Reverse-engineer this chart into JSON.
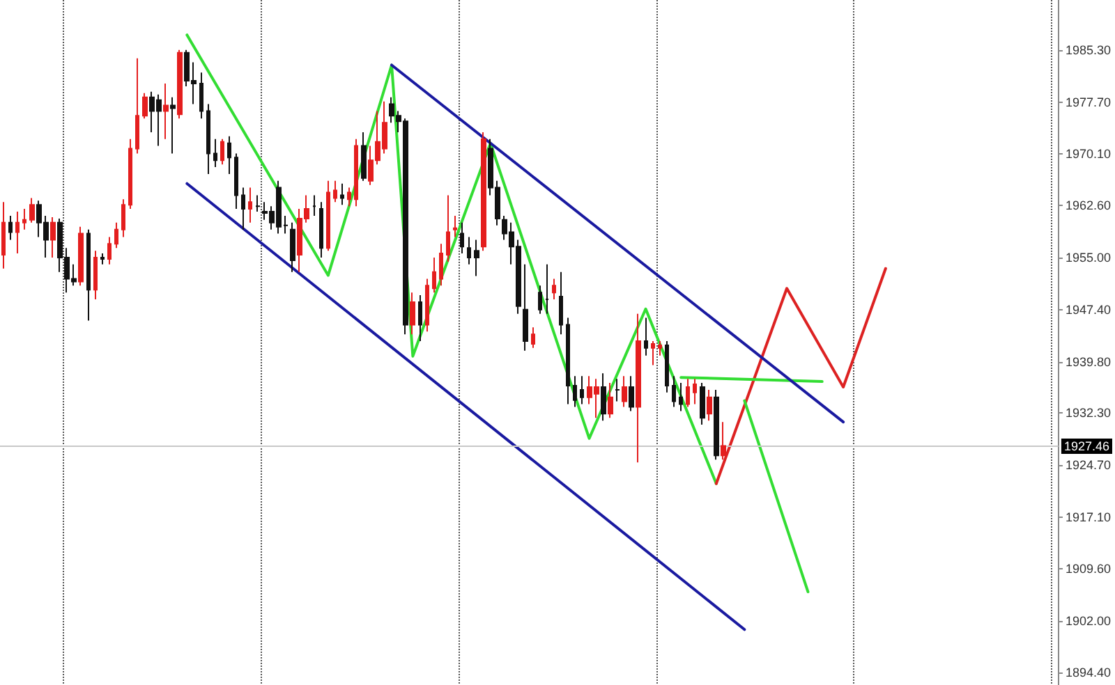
{
  "chart_data": {
    "type": "candlestick",
    "categories": [
      null,
      null,
      null,
      null,
      null,
      null,
      null,
      null,
      null,
      null,
      null,
      null,
      null,
      null,
      null,
      null,
      null,
      null,
      null,
      null,
      null,
      null,
      null,
      null,
      null,
      null,
      null,
      null,
      null,
      null,
      null,
      null,
      null,
      null,
      null,
      null,
      null,
      null,
      null,
      null,
      null,
      null,
      null,
      null,
      null,
      null,
      null,
      null,
      null,
      null,
      null,
      null,
      null,
      null,
      null,
      null,
      null,
      null,
      null,
      null,
      null,
      null,
      null,
      null,
      null,
      null,
      null,
      null,
      null,
      null,
      null,
      null,
      null,
      null,
      null,
      null,
      null,
      null,
      null,
      null,
      null,
      null,
      null,
      null,
      null,
      null,
      null,
      null,
      null,
      null,
      null,
      null,
      null,
      null,
      null,
      null,
      null,
      null,
      null,
      null,
      null,
      null,
      null,
      null,
      null,
      null,
      null,
      null,
      null,
      null,
      null,
      null,
      null,
      null,
      null,
      null,
      null,
      null,
      null,
      null,
      null,
      null,
      null,
      null,
      null,
      null,
      null,
      null,
      null,
      null,
      null,
      null,
      null,
      null,
      null,
      null,
      null,
      null,
      null,
      null,
      null,
      null,
      null,
      null,
      null,
      null,
      null,
      null,
      null,
      null
    ],
    "ohlc": [
      [
        1955.4,
        1963.1,
        1953.4,
        1960.1
      ],
      [
        1960.1,
        1961.1,
        1957.6,
        1958.7
      ],
      [
        1958.7,
        1961.7,
        1955.6,
        1960.1
      ],
      [
        1960.1,
        1962.1,
        1959.1,
        1960.5
      ],
      [
        1960.5,
        1963.7,
        1960.1,
        1962.7
      ],
      [
        1962.7,
        1963.3,
        1958.0,
        1960.1
      ],
      [
        1960.1,
        1961.1,
        1955.0,
        1957.6
      ],
      [
        1957.6,
        1960.9,
        1955.0,
        1960.1
      ],
      [
        1960.1,
        1960.7,
        1952.9,
        1955.0
      ],
      [
        1955.0,
        1956.4,
        1949.9,
        1951.9
      ],
      [
        1951.9,
        1954.0,
        1950.9,
        1951.5
      ],
      [
        1951.5,
        1959.5,
        1950.9,
        1958.5
      ],
      [
        1958.5,
        1959.1,
        1945.8,
        1950.3
      ],
      [
        1950.3,
        1956.0,
        1948.9,
        1955.0
      ],
      [
        1955.0,
        1955.6,
        1954.0,
        1954.8
      ],
      [
        1954.8,
        1958.0,
        1954.0,
        1957.0
      ],
      [
        1957.0,
        1960.1,
        1956.4,
        1959.1
      ],
      [
        1959.1,
        1963.5,
        1958.0,
        1962.7
      ],
      [
        1962.7,
        1972.3,
        1962.1,
        1970.9
      ],
      [
        1970.9,
        1984.1,
        1970.2,
        1975.7
      ],
      [
        1975.7,
        1979.0,
        1975.3,
        1978.4
      ],
      [
        1978.4,
        1979.2,
        1973.3,
        1976.4
      ],
      [
        1978.0,
        1978.8,
        1971.3,
        1976.4
      ],
      [
        1976.4,
        1980.4,
        1972.3,
        1977.2
      ],
      [
        1977.2,
        1978.4,
        1970.2,
        1976.8
      ],
      [
        1975.9,
        1985.3,
        1975.3,
        1984.9
      ],
      [
        1984.9,
        1985.3,
        1980.0,
        1980.8
      ],
      [
        1980.8,
        1983.5,
        1977.4,
        1980.4
      ],
      [
        1980.4,
        1982.0,
        1975.3,
        1976.4
      ],
      [
        1976.4,
        1977.4,
        1967.2,
        1970.2
      ],
      [
        1970.2,
        1972.3,
        1968.2,
        1969.2
      ],
      [
        1969.2,
        1972.3,
        1968.6,
        1971.9
      ],
      [
        1971.7,
        1972.7,
        1967.2,
        1969.6
      ],
      [
        1969.6,
        1970.2,
        1962.1,
        1964.1
      ],
      [
        1964.1,
        1965.2,
        1959.1,
        1962.1
      ],
      [
        1962.1,
        1965.2,
        1960.1,
        1963.1
      ],
      [
        1962.5,
        1964.1,
        1961.7,
        1962.5
      ],
      [
        1961.7,
        1963.1,
        1960.5,
        1961.5
      ],
      [
        1961.7,
        1962.5,
        1959.1,
        1960.1
      ],
      [
        1965.2,
        1966.2,
        1958.5,
        1959.5
      ],
      [
        1959.7,
        1961.1,
        1958.5,
        1959.7
      ],
      [
        1959.1,
        1960.1,
        1952.9,
        1954.6
      ],
      [
        1955.4,
        1962.1,
        1952.9,
        1960.7
      ],
      [
        1960.7,
        1964.1,
        1960.1,
        1962.1
      ],
      [
        1962.5,
        1964.1,
        1961.1,
        1962.5
      ],
      [
        1962.1,
        1963.1,
        1955.0,
        1956.4
      ],
      [
        1956.4,
        1966.2,
        1956.0,
        1964.5
      ],
      [
        1963.7,
        1966.2,
        1963.1,
        1964.8
      ],
      [
        1964.1,
        1965.8,
        1962.7,
        1963.7
      ],
      [
        1963.5,
        1965.2,
        1962.5,
        1964.5
      ],
      [
        1963.5,
        1972.3,
        1962.5,
        1971.3
      ],
      [
        1971.3,
        1973.3,
        1966.2,
        1966.6
      ],
      [
        1966.2,
        1971.3,
        1965.6,
        1969.2
      ],
      [
        1969.2,
        1976.4,
        1968.6,
        1971.9
      ],
      [
        1970.9,
        1977.8,
        1970.2,
        1974.7
      ],
      [
        1977.4,
        1978.4,
        1974.7,
        1975.7
      ],
      [
        1975.7,
        1976.4,
        1973.3,
        1974.9
      ],
      [
        1974.9,
        1975.3,
        1943.8,
        1945.2
      ],
      [
        1945.2,
        1949.9,
        1943.8,
        1948.5
      ],
      [
        1948.5,
        1949.5,
        1942.8,
        1945.2
      ],
      [
        1945.2,
        1951.9,
        1944.2,
        1950.9
      ],
      [
        1950.5,
        1955.0,
        1949.9,
        1952.9
      ],
      [
        1951.9,
        1957.0,
        1950.9,
        1955.6
      ],
      [
        1955.4,
        1964.1,
        1954.4,
        1958.7
      ],
      [
        1959.1,
        1961.1,
        1958.0,
        1959.3
      ],
      [
        1958.5,
        1960.1,
        1955.6,
        1956.6
      ],
      [
        1956.4,
        1958.0,
        1954.0,
        1955.0
      ],
      [
        1956.0,
        1957.6,
        1952.3,
        1955.0
      ],
      [
        1956.6,
        1973.3,
        1956.0,
        1972.3
      ],
      [
        1970.9,
        1972.3,
        1964.1,
        1965.2
      ],
      [
        1965.2,
        1966.2,
        1959.7,
        1960.7
      ],
      [
        1960.5,
        1961.1,
        1957.6,
        1958.5
      ],
      [
        1958.7,
        1960.1,
        1954.0,
        1956.6
      ],
      [
        1956.6,
        1957.6,
        1946.8,
        1947.9
      ],
      [
        1947.4,
        1954.0,
        1941.4,
        1942.8
      ],
      [
        1942.4,
        1944.8,
        1941.8,
        1943.8
      ],
      [
        1949.9,
        1950.9,
        1946.8,
        1947.4
      ],
      [
        1948.9,
        1954.0,
        1946.8,
        1948.9
      ],
      [
        1949.9,
        1951.9,
        1948.9,
        1950.9
      ],
      [
        1949.3,
        1952.9,
        1943.8,
        1945.2
      ],
      [
        1945.2,
        1946.2,
        1933.6,
        1936.3
      ],
      [
        1936.3,
        1937.7,
        1933.2,
        1934.2
      ],
      [
        1935.7,
        1937.7,
        1933.6,
        1934.6
      ],
      [
        1934.6,
        1937.7,
        1933.6,
        1936.1
      ],
      [
        1935.1,
        1937.3,
        1931.6,
        1936.1
      ],
      [
        1936.1,
        1938.1,
        1931.2,
        1932.2
      ],
      [
        1932.2,
        1936.7,
        1931.6,
        1934.6
      ],
      [
        1935.7,
        1937.3,
        1934.0,
        1935.7
      ],
      [
        1934.0,
        1937.7,
        1933.2,
        1936.1
      ],
      [
        1936.1,
        1937.7,
        1932.6,
        1933.2
      ],
      [
        1933.2,
        1946.8,
        1925.1,
        1942.8
      ],
      [
        1942.8,
        1946.2,
        1940.7,
        1941.8
      ],
      [
        1941.8,
        1942.8,
        1939.3,
        1942.4
      ],
      [
        1941.8,
        1942.8,
        1940.7,
        1942.2
      ],
      [
        1942.2,
        1942.8,
        1935.3,
        1936.3
      ],
      [
        1936.3,
        1937.7,
        1933.2,
        1934.0
      ],
      [
        1934.6,
        1936.7,
        1932.6,
        1933.6
      ],
      [
        1933.6,
        1937.3,
        1933.2,
        1936.1
      ],
      [
        1935.3,
        1937.3,
        1933.6,
        1936.5
      ],
      [
        1936.1,
        1936.7,
        1930.6,
        1931.6
      ],
      [
        1932.2,
        1935.7,
        1931.2,
        1934.6
      ],
      [
        1934.6,
        1935.7,
        1925.5,
        1926.1
      ],
      [
        1926.1,
        1931.0,
        1925.5,
        1927.5
      ],
      null,
      null,
      null,
      null,
      null,
      null,
      null,
      null,
      null,
      null,
      null,
      null,
      null,
      null,
      null,
      null,
      null,
      null,
      null,
      null,
      null,
      null,
      null,
      null,
      null,
      null,
      null,
      null,
      null,
      null,
      null,
      null,
      null,
      null,
      null,
      null,
      null,
      null,
      null,
      null,
      null,
      null,
      null,
      null,
      null,
      null,
      null
    ],
    "colors": [
      "#e41e1e",
      "#111111",
      "#e41e1e",
      "#e41e1e",
      "#e41e1e",
      "#111111",
      "#111111",
      "#e41e1e",
      "#111111",
      "#111111",
      "#111111",
      "#e41e1e",
      "#111111",
      "#e41e1e",
      "#111111",
      "#e41e1e",
      "#e41e1e",
      "#e41e1e",
      "#e41e1e",
      "#e41e1e",
      "#e41e1e",
      "#111111",
      "#111111",
      "#e41e1e",
      "#111111",
      "#e41e1e",
      "#111111",
      "#111111",
      "#111111",
      "#111111",
      "#111111",
      "#e41e1e",
      "#111111",
      "#111111",
      "#111111",
      "#e41e1e",
      "#111111",
      "#111111",
      "#111111",
      "#111111",
      "#111111",
      "#111111",
      "#e41e1e",
      "#e41e1e",
      "#111111",
      "#111111",
      "#e41e1e",
      "#e41e1e",
      "#111111",
      "#e41e1e",
      "#e41e1e",
      "#111111",
      "#e41e1e",
      "#e41e1e",
      "#e41e1e",
      "#111111",
      "#111111",
      "#111111",
      "#e41e1e",
      "#111111",
      "#e41e1e",
      "#e41e1e",
      "#e41e1e",
      "#e41e1e",
      "#e41e1e",
      "#111111",
      "#111111",
      "#111111",
      "#e41e1e",
      "#111111",
      "#111111",
      "#111111",
      "#111111",
      "#111111",
      "#111111",
      "#e41e1e",
      "#111111",
      "#111111",
      "#e41e1e",
      "#111111",
      "#111111",
      "#111111",
      "#111111",
      "#e41e1e",
      "#e41e1e",
      "#111111",
      "#e41e1e",
      "#111111",
      "#e41e1e",
      "#111111",
      "#e41e1e",
      "#111111",
      "#e41e1e",
      "#e41e1e",
      "#111111",
      "#111111",
      "#111111",
      "#e41e1e",
      "#e41e1e",
      "#111111",
      "#e41e1e",
      "#111111",
      "#e41e1e",
      null,
      null,
      null,
      null,
      null,
      null,
      null,
      null,
      null,
      null,
      null,
      null,
      null,
      null,
      null,
      null,
      null,
      null,
      null,
      null,
      null,
      null,
      null,
      null,
      null,
      null,
      null,
      null,
      null,
      null,
      null,
      null,
      null,
      null,
      null,
      null,
      null,
      null,
      null,
      null,
      null,
      null,
      null,
      null,
      null,
      null,
      null
    ],
    "series": [
      {
        "type": "line",
        "color": "#33dd33",
        "values": [
          null,
          null,
          null,
          null,
          null,
          null,
          null,
          null,
          null,
          null,
          null,
          null,
          null,
          null,
          null,
          null,
          null,
          null,
          null,
          null,
          null,
          null,
          null,
          null,
          null,
          null,
          1987.5,
          null,
          null,
          null,
          null,
          null,
          null,
          null,
          null,
          null,
          null,
          null,
          null,
          null,
          null,
          null,
          null,
          null,
          null,
          null,
          1952.4,
          null,
          null,
          null,
          null,
          null,
          null,
          null,
          null,
          1983.1,
          null,
          null,
          1940.6,
          null,
          null,
          null,
          null,
          null,
          null,
          null,
          null,
          null,
          null,
          1971.7,
          null,
          null,
          null,
          null,
          null,
          null,
          null,
          null,
          null,
          null,
          null,
          null,
          null,
          1928.6,
          null,
          null,
          null,
          null,
          null,
          null,
          null,
          1947.5,
          null,
          null,
          null,
          null,
          null,
          null,
          null,
          null,
          null,
          1922.0,
          null,
          null,
          null,
          null,
          null,
          null,
          null,
          null,
          null,
          null,
          null,
          null,
          null,
          null,
          null,
          null,
          null,
          null,
          null,
          null,
          null,
          null,
          null,
          null,
          null,
          null,
          null,
          null,
          null,
          null,
          null,
          null,
          null,
          null,
          null,
          null,
          null,
          null,
          null,
          null,
          null,
          null,
          null,
          null,
          null,
          null,
          null,
          null
        ]
      },
      {
        "type": "line",
        "color": "#dd2222",
        "values": [
          null,
          null,
          null,
          null,
          null,
          null,
          null,
          null,
          null,
          null,
          null,
          null,
          null,
          null,
          null,
          null,
          null,
          null,
          null,
          null,
          null,
          null,
          null,
          null,
          null,
          null,
          null,
          null,
          null,
          null,
          null,
          null,
          null,
          null,
          null,
          null,
          null,
          null,
          null,
          null,
          null,
          null,
          null,
          null,
          null,
          null,
          null,
          null,
          null,
          null,
          null,
          null,
          null,
          null,
          null,
          null,
          null,
          null,
          null,
          null,
          null,
          null,
          null,
          null,
          null,
          null,
          null,
          null,
          null,
          null,
          null,
          null,
          null,
          null,
          null,
          null,
          null,
          null,
          null,
          null,
          null,
          null,
          null,
          null,
          null,
          null,
          null,
          null,
          null,
          null,
          null,
          null,
          null,
          null,
          null,
          null,
          null,
          null,
          null,
          null,
          null,
          1922.0,
          null,
          null,
          null,
          null,
          null,
          null,
          null,
          null,
          null,
          1950.5,
          null,
          null,
          null,
          null,
          null,
          null,
          null,
          1936.1,
          null,
          null,
          null,
          null,
          null,
          1953.4,
          null,
          null,
          null,
          null,
          null,
          null,
          null,
          null,
          null,
          null,
          null,
          null,
          null,
          null,
          null,
          null,
          null,
          null,
          null,
          null,
          null,
          null,
          null,
          null
        ]
      },
      {
        "type": "line",
        "color": "#33dd33",
        "values": [
          null,
          null,
          null,
          null,
          null,
          null,
          null,
          null,
          null,
          null,
          null,
          null,
          null,
          null,
          null,
          null,
          null,
          null,
          null,
          null,
          null,
          null,
          null,
          null,
          null,
          null,
          null,
          null,
          null,
          null,
          null,
          null,
          null,
          null,
          null,
          null,
          null,
          null,
          null,
          null,
          null,
          null,
          null,
          null,
          null,
          null,
          null,
          null,
          null,
          null,
          null,
          null,
          null,
          null,
          null,
          null,
          null,
          null,
          null,
          null,
          null,
          null,
          null,
          null,
          null,
          null,
          null,
          null,
          null,
          null,
          null,
          null,
          null,
          null,
          null,
          null,
          null,
          null,
          null,
          null,
          null,
          null,
          null,
          null,
          null,
          null,
          null,
          null,
          null,
          null,
          null,
          null,
          null,
          null,
          null,
          null,
          null,
          null,
          null,
          null,
          null,
          null,
          null,
          null,
          null,
          1934.1,
          null,
          null,
          null,
          null,
          null,
          null,
          null,
          null,
          1906.2,
          null,
          null,
          null,
          null,
          null,
          null,
          null,
          null,
          null,
          null,
          null,
          null,
          null,
          null,
          null,
          null,
          null,
          null,
          null,
          null,
          null,
          null,
          null,
          null,
          null,
          null,
          null,
          null,
          null,
          null,
          null,
          null,
          null,
          null,
          null
        ]
      },
      {
        "type": "line",
        "color": "#33dd33",
        "values": [
          null,
          null,
          null,
          null,
          null,
          null,
          null,
          null,
          null,
          null,
          null,
          null,
          null,
          null,
          null,
          null,
          null,
          null,
          null,
          null,
          null,
          null,
          null,
          null,
          null,
          null,
          null,
          null,
          null,
          null,
          null,
          null,
          null,
          null,
          null,
          null,
          null,
          null,
          null,
          null,
          null,
          null,
          null,
          null,
          null,
          null,
          null,
          null,
          null,
          null,
          null,
          null,
          null,
          null,
          null,
          null,
          null,
          null,
          null,
          null,
          null,
          null,
          null,
          null,
          null,
          null,
          null,
          null,
          null,
          null,
          null,
          null,
          null,
          null,
          null,
          null,
          null,
          null,
          null,
          null,
          null,
          null,
          null,
          null,
          null,
          null,
          null,
          null,
          null,
          null,
          null,
          null,
          null,
          null,
          null,
          null,
          1937.5,
          null,
          null,
          null,
          null,
          null,
          null,
          null,
          null,
          null,
          null,
          null,
          null,
          null,
          null,
          null,
          null,
          null,
          null,
          null,
          1936.9,
          null,
          null,
          null,
          null,
          null,
          null,
          null,
          null,
          null,
          null,
          null,
          null,
          null,
          null,
          null,
          null,
          null,
          null,
          null,
          null,
          null,
          null,
          null,
          null,
          null,
          null,
          null,
          null,
          null,
          null,
          null,
          null,
          null
        ]
      },
      {
        "type": "line",
        "color": "#1a1aa0",
        "values": [
          null,
          null,
          null,
          null,
          null,
          null,
          null,
          null,
          null,
          null,
          null,
          null,
          null,
          null,
          null,
          null,
          null,
          null,
          null,
          null,
          null,
          null,
          null,
          null,
          null,
          null,
          null,
          null,
          null,
          null,
          null,
          null,
          null,
          null,
          null,
          null,
          null,
          null,
          null,
          null,
          null,
          null,
          null,
          null,
          null,
          null,
          null,
          null,
          null,
          null,
          null,
          null,
          null,
          null,
          null,
          1983.1,
          null,
          null,
          null,
          null,
          null,
          null,
          null,
          null,
          null,
          null,
          null,
          null,
          null,
          null,
          null,
          null,
          null,
          null,
          null,
          null,
          null,
          null,
          null,
          null,
          null,
          null,
          null,
          null,
          null,
          null,
          null,
          null,
          null,
          null,
          null,
          null,
          null,
          null,
          null,
          null,
          null,
          null,
          null,
          null,
          null,
          null,
          null,
          null,
          null,
          null,
          null,
          null,
          null,
          null,
          null,
          null,
          null,
          null,
          null,
          null,
          null,
          null,
          null,
          1931.0,
          null,
          null,
          null,
          null,
          null,
          null,
          null,
          null,
          null,
          null,
          null,
          null,
          null,
          null,
          null,
          null,
          null,
          null,
          null,
          null,
          null,
          null,
          null,
          null,
          null,
          null,
          null,
          null,
          null,
          null
        ]
      },
      {
        "type": "line",
        "color": "#1a1aa0",
        "values": [
          null,
          null,
          null,
          null,
          null,
          null,
          null,
          null,
          null,
          null,
          null,
          null,
          null,
          null,
          null,
          null,
          null,
          null,
          null,
          null,
          null,
          null,
          null,
          null,
          null,
          null,
          1965.8,
          null,
          null,
          null,
          null,
          null,
          null,
          null,
          null,
          null,
          null,
          null,
          null,
          null,
          null,
          null,
          null,
          null,
          null,
          null,
          null,
          null,
          null,
          null,
          null,
          null,
          null,
          null,
          null,
          null,
          null,
          null,
          null,
          null,
          null,
          null,
          null,
          null,
          null,
          null,
          null,
          null,
          null,
          null,
          null,
          null,
          null,
          null,
          null,
          null,
          null,
          null,
          null,
          null,
          null,
          null,
          null,
          null,
          null,
          null,
          null,
          null,
          null,
          null,
          null,
          null,
          null,
          null,
          null,
          null,
          null,
          null,
          null,
          null,
          null,
          null,
          null,
          null,
          null,
          1900.7,
          null,
          null,
          null,
          null,
          null,
          null,
          null,
          null,
          null,
          null,
          null,
          null,
          null,
          null,
          null,
          null,
          null,
          null,
          null,
          null,
          null,
          null,
          null,
          null,
          null,
          null,
          null,
          null,
          null,
          null,
          null,
          null,
          null,
          null,
          null,
          null,
          null,
          null,
          null,
          null,
          null,
          null,
          null,
          null
        ]
      }
    ],
    "ylim": [
      1892.6,
      1992.6
    ],
    "yticks": [
      {
        "value": 1985.3,
        "label": "1985.30"
      },
      {
        "value": 1977.7,
        "label": "1977.70"
      },
      {
        "value": 1970.1,
        "label": "1970.10"
      },
      {
        "value": 1962.6,
        "label": "1962.60"
      },
      {
        "value": 1955.0,
        "label": "1955.00"
      },
      {
        "value": 1947.4,
        "label": "1947.40"
      },
      {
        "value": 1939.8,
        "label": "1939.80"
      },
      {
        "value": 1932.3,
        "label": "1932.30"
      },
      {
        "value": 1924.7,
        "label": "1924.70"
      },
      {
        "value": 1917.1,
        "label": "1917.10"
      },
      {
        "value": 1909.6,
        "label": "1909.60"
      },
      {
        "value": 1902.0,
        "label": "1902.00"
      },
      {
        "value": 1894.4,
        "label": "1894.40"
      }
    ],
    "ref_lines": [
      {
        "axis": "y",
        "value": 1927.46,
        "label": "1927.46",
        "color": "#c8c8c8"
      }
    ],
    "grid": "x",
    "tick_labels": "y"
  }
}
